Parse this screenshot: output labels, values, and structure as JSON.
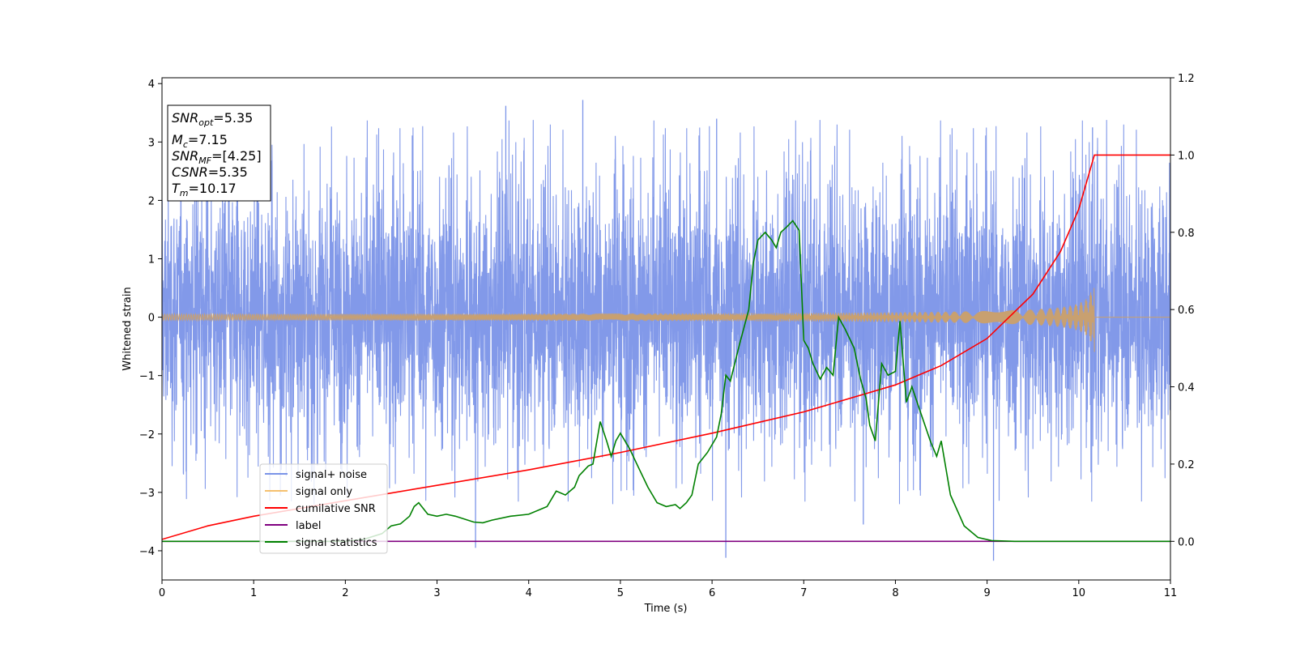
{
  "chart_data": {
    "type": "line",
    "xlabel": "Time (s)",
    "ylabel": "Whitened strain",
    "xlim": [
      0,
      11
    ],
    "ylim_left": [
      -4.5,
      4.1
    ],
    "ylim_right": [
      -0.1,
      1.2
    ],
    "x_ticks": [
      "0",
      "1",
      "2",
      "3",
      "4",
      "5",
      "6",
      "7",
      "8",
      "9",
      "10",
      "11"
    ],
    "y_ticks_left": [
      "4",
      "3",
      "2",
      "1",
      "0",
      "−1",
      "−2",
      "−3",
      "−4"
    ],
    "y_ticks_right": [
      "1.2",
      "1.0",
      "0.8",
      "0.6",
      "0.4",
      "0.2",
      "0.0"
    ],
    "grid": false,
    "legend_position": "lower-left",
    "legend": [
      {
        "label": "signal+ noise",
        "color": "#7b94e8"
      },
      {
        "label": "signal only",
        "color": "#f5c06e"
      },
      {
        "label": "cumilative SNR",
        "color": "#ff0000"
      },
      {
        "label": "label",
        "color": "#800080"
      },
      {
        "label": "signal statistics",
        "color": "#008000"
      }
    ],
    "info_box": {
      "snr_opt": {
        "sym": "SNR",
        "sub": "opt",
        "value": "=5.35"
      },
      "mc": {
        "sym": "M",
        "sub": "c",
        "value": "=7.15"
      },
      "snr_mf": {
        "sym": "SNR",
        "sub": "MF",
        "value": "=[4.25]"
      },
      "csnr": {
        "sym": "CSNR",
        "value": "=5.35"
      },
      "tm": {
        "sym": "T",
        "sub": "m",
        "value": "=10.17"
      }
    },
    "series": [
      {
        "name": "signal+ noise",
        "axis": "left",
        "color": "#7b94e8",
        "style": "noise",
        "x_range": [
          0,
          11
        ],
        "envelope_typical": [
          -1.8,
          2.0
        ],
        "peaks_max": [
          [
            4.59,
            3.72
          ],
          [
            3.75,
            3.62
          ],
          [
            10.15,
            3.25
          ],
          [
            6.05,
            3.4
          ]
        ],
        "peaks_min": [
          [
            9.07,
            -4.17
          ],
          [
            6.15,
            -4.12
          ],
          [
            3.42,
            -3.95
          ],
          [
            7.65,
            -3.55
          ]
        ]
      },
      {
        "name": "signal only",
        "axis": "left",
        "color": "#c8a070",
        "style": "chirp",
        "x_range": [
          0,
          10.17
        ],
        "amplitude_start": 0.03,
        "amplitude_end": 0.75
      },
      {
        "name": "cumilative SNR",
        "axis": "right",
        "color": "#ff0000",
        "x": [
          0,
          0.5,
          1,
          2,
          3,
          4,
          5,
          6,
          7,
          8,
          8.5,
          9,
          9.5,
          9.8,
          10.0,
          10.17,
          11
        ],
        "y": [
          0.005,
          0.04,
          0.065,
          0.105,
          0.145,
          0.185,
          0.23,
          0.28,
          0.335,
          0.405,
          0.455,
          0.525,
          0.64,
          0.75,
          0.86,
          1.0,
          1.0
        ]
      },
      {
        "name": "label",
        "axis": "right",
        "color": "#800080",
        "x": [
          0,
          11
        ],
        "y": [
          0.0,
          0.0
        ]
      },
      {
        "name": "signal statistics",
        "axis": "right",
        "color": "#008000",
        "x": [
          0,
          0.5,
          1.0,
          1.5,
          2.0,
          2.2,
          2.4,
          2.5,
          2.6,
          2.7,
          2.75,
          2.8,
          2.9,
          3.0,
          3.1,
          3.2,
          3.4,
          3.5,
          3.6,
          3.8,
          4.0,
          4.2,
          4.3,
          4.4,
          4.5,
          4.55,
          4.65,
          4.7,
          4.78,
          4.85,
          4.9,
          4.95,
          5.0,
          5.1,
          5.2,
          5.3,
          5.4,
          5.5,
          5.6,
          5.65,
          5.72,
          5.78,
          5.85,
          5.95,
          6.05,
          6.1,
          6.15,
          6.2,
          6.3,
          6.4,
          6.45,
          6.5,
          6.58,
          6.65,
          6.7,
          6.75,
          6.82,
          6.88,
          6.95,
          7.0,
          7.05,
          7.1,
          7.18,
          7.25,
          7.32,
          7.38,
          7.45,
          7.5,
          7.55,
          7.62,
          7.68,
          7.72,
          7.78,
          7.85,
          7.92,
          8.0,
          8.05,
          8.12,
          8.18,
          8.28,
          8.38,
          8.45,
          8.5,
          8.6,
          8.75,
          8.9,
          9.05,
          9.3,
          9.6,
          10.0,
          10.5,
          11.0
        ],
        "y": [
          0.0,
          0.0,
          0.0,
          0.0,
          0.0,
          0.005,
          0.02,
          0.04,
          0.045,
          0.065,
          0.09,
          0.1,
          0.07,
          0.065,
          0.07,
          0.065,
          0.05,
          0.048,
          0.055,
          0.065,
          0.07,
          0.09,
          0.13,
          0.12,
          0.14,
          0.17,
          0.195,
          0.2,
          0.31,
          0.26,
          0.22,
          0.26,
          0.28,
          0.24,
          0.19,
          0.14,
          0.1,
          0.09,
          0.095,
          0.085,
          0.1,
          0.12,
          0.2,
          0.23,
          0.27,
          0.33,
          0.43,
          0.415,
          0.51,
          0.6,
          0.72,
          0.78,
          0.8,
          0.78,
          0.76,
          0.8,
          0.815,
          0.83,
          0.805,
          0.52,
          0.5,
          0.46,
          0.42,
          0.45,
          0.43,
          0.58,
          0.55,
          0.525,
          0.5,
          0.42,
          0.37,
          0.3,
          0.26,
          0.46,
          0.43,
          0.44,
          0.57,
          0.36,
          0.4,
          0.33,
          0.26,
          0.22,
          0.26,
          0.12,
          0.04,
          0.01,
          0.002,
          0.0,
          0.0,
          0.0,
          0.0,
          0.0
        ]
      }
    ]
  }
}
